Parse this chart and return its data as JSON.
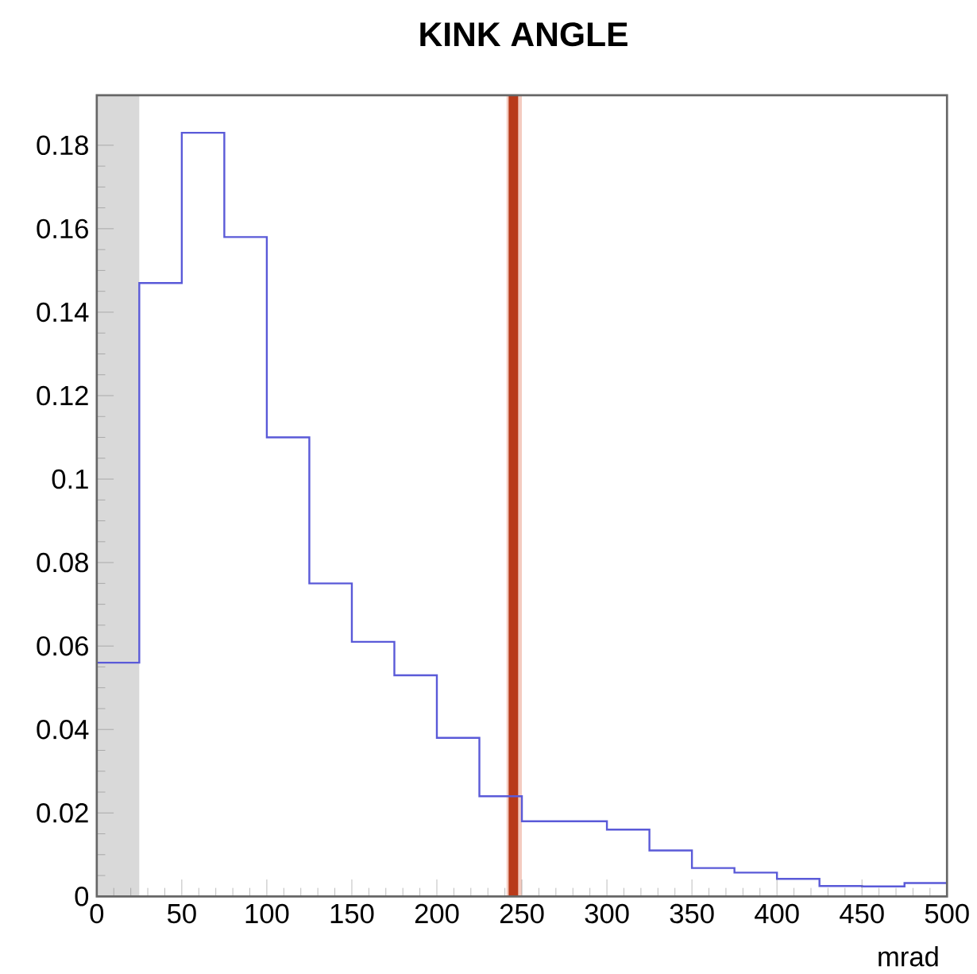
{
  "chart_data": {
    "type": "histogram",
    "title": "KINK ANGLE",
    "xlabel": "mrad",
    "bins": [
      0,
      25,
      50,
      75,
      100,
      125,
      150,
      175,
      200,
      225,
      250,
      275,
      300,
      325,
      350,
      375,
      400,
      425,
      450,
      475,
      500
    ],
    "values": [
      0.056,
      0.147,
      0.183,
      0.158,
      0.11,
      0.075,
      0.061,
      0.053,
      0.038,
      0.024,
      0.018,
      0.018,
      0.016,
      0.011,
      0.0068,
      0.0057,
      0.0042,
      0.0025,
      0.0024,
      0.0032
    ],
    "color": "#5a5ad8",
    "xlim": [
      0,
      500
    ],
    "xticks": [
      0,
      50,
      100,
      150,
      200,
      250,
      300,
      350,
      400,
      450,
      500
    ],
    "ylim": [
      0,
      0.192
    ],
    "yticks": [
      0,
      0.02,
      0.04,
      0.06,
      0.08,
      0.1,
      0.12,
      0.14,
      0.16,
      0.18
    ],
    "bands": [
      {
        "axis": "x",
        "from": 0,
        "to": 25,
        "color": "#d9d9d9"
      },
      {
        "axis": "x",
        "from": 241,
        "to": 250,
        "color": "#f4cbc0"
      }
    ],
    "ref_lines": [
      {
        "axis": "x",
        "value": 245,
        "color": "#b83a1a"
      }
    ],
    "grid": false
  }
}
